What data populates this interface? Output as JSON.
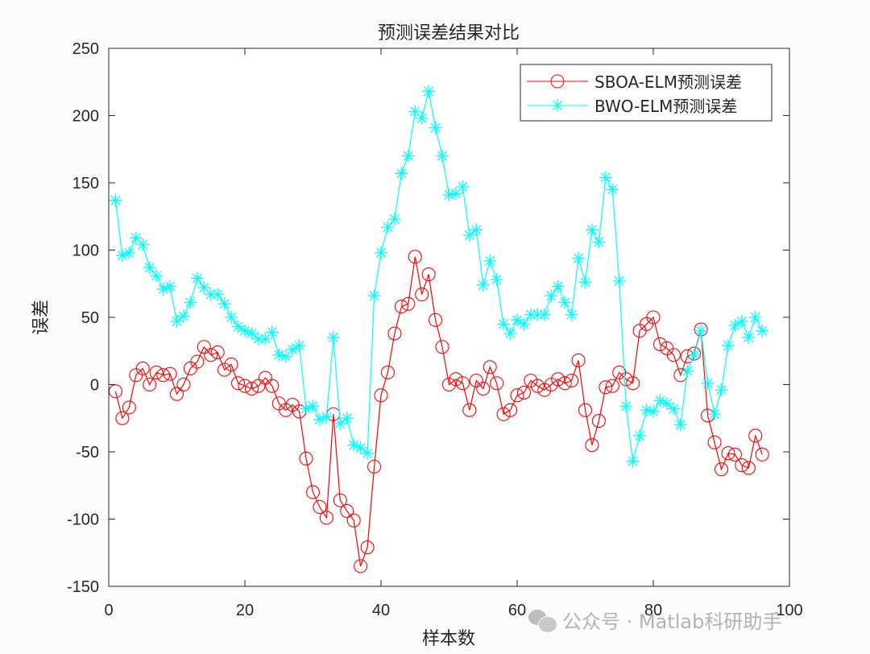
{
  "chart_data": {
    "type": "line",
    "title": "预测误差结果对比",
    "xlabel": "样本数",
    "ylabel": "误差",
    "xlim": [
      0,
      100
    ],
    "ylim": [
      -150,
      250
    ],
    "xticks": [
      0,
      20,
      40,
      60,
      80,
      100
    ],
    "yticks": [
      -150,
      -100,
      -50,
      0,
      50,
      100,
      150,
      200,
      250
    ],
    "grid": false,
    "legend_position": "northeast",
    "x": [
      1,
      2,
      3,
      4,
      5,
      6,
      7,
      8,
      9,
      10,
      11,
      12,
      13,
      14,
      15,
      16,
      17,
      18,
      19,
      20,
      21,
      22,
      23,
      24,
      25,
      26,
      27,
      28,
      29,
      30,
      31,
      32,
      33,
      34,
      35,
      36,
      37,
      38,
      39,
      40,
      41,
      42,
      43,
      44,
      45,
      46,
      47,
      48,
      49,
      50,
      51,
      52,
      53,
      54,
      55,
      56,
      57,
      58,
      59,
      60,
      61,
      62,
      63,
      64,
      65,
      66,
      67,
      68,
      69,
      70,
      71,
      72,
      73,
      74,
      75,
      76,
      77,
      78,
      79,
      80,
      81,
      82,
      83,
      84,
      85,
      86,
      87,
      88,
      89,
      90,
      91,
      92,
      93,
      94,
      95,
      96
    ],
    "series": [
      {
        "name": "SBOA-ELM预测误差",
        "color": "#ff0000",
        "marker": "circle",
        "values": [
          -5,
          -25,
          -17,
          7,
          12,
          0,
          9,
          7,
          8,
          -7,
          0,
          12,
          17,
          28,
          22,
          24,
          11,
          15,
          1,
          -1,
          -3,
          -1,
          5,
          -1,
          -14,
          -19,
          -15,
          -20,
          -55,
          -80,
          -91,
          -99,
          -22,
          -86,
          -94,
          -101,
          -135,
          -121,
          -61,
          -8,
          9,
          38,
          58,
          60,
          95,
          67,
          82,
          48,
          28,
          0,
          4,
          1,
          -19,
          3,
          -3,
          13,
          1,
          -22,
          -19,
          -8,
          -6,
          3,
          -1,
          -4,
          0,
          4,
          1,
          3,
          18,
          -19,
          -45,
          -27,
          -2,
          -1,
          9,
          4,
          1,
          40,
          45,
          50,
          30,
          27,
          22,
          7,
          21,
          23,
          41,
          -23,
          -43,
          -63,
          -51,
          -52,
          -60,
          -62,
          -38,
          -52
        ]
      },
      {
        "name": "BWO-ELM预测误差",
        "color": "#00ffff",
        "marker": "asterisk",
        "values": [
          137,
          96,
          98,
          109,
          104,
          87,
          81,
          71,
          73,
          47,
          51,
          61,
          79,
          72,
          67,
          67,
          60,
          50,
          43,
          40,
          38,
          34,
          34,
          39,
          22,
          21,
          26,
          29,
          -18,
          -16,
          -26,
          -24,
          35,
          -29,
          -25,
          -45,
          -47,
          -51,
          66,
          98,
          117,
          123,
          157,
          170,
          203,
          198,
          218,
          191,
          170,
          141,
          142,
          147,
          111,
          115,
          74,
          92,
          78,
          45,
          38,
          48,
          45,
          52,
          52,
          52,
          66,
          73,
          61,
          52,
          94,
          76,
          115,
          106,
          154,
          145,
          77,
          -16,
          -57,
          -38,
          -19,
          -20,
          -12,
          -14,
          -18,
          -30,
          10,
          22,
          40,
          1,
          -22,
          -4,
          29,
          44,
          47,
          35,
          50,
          40
        ]
      }
    ]
  },
  "watermark": {
    "text": "公众号 · Matlab科研助手"
  }
}
